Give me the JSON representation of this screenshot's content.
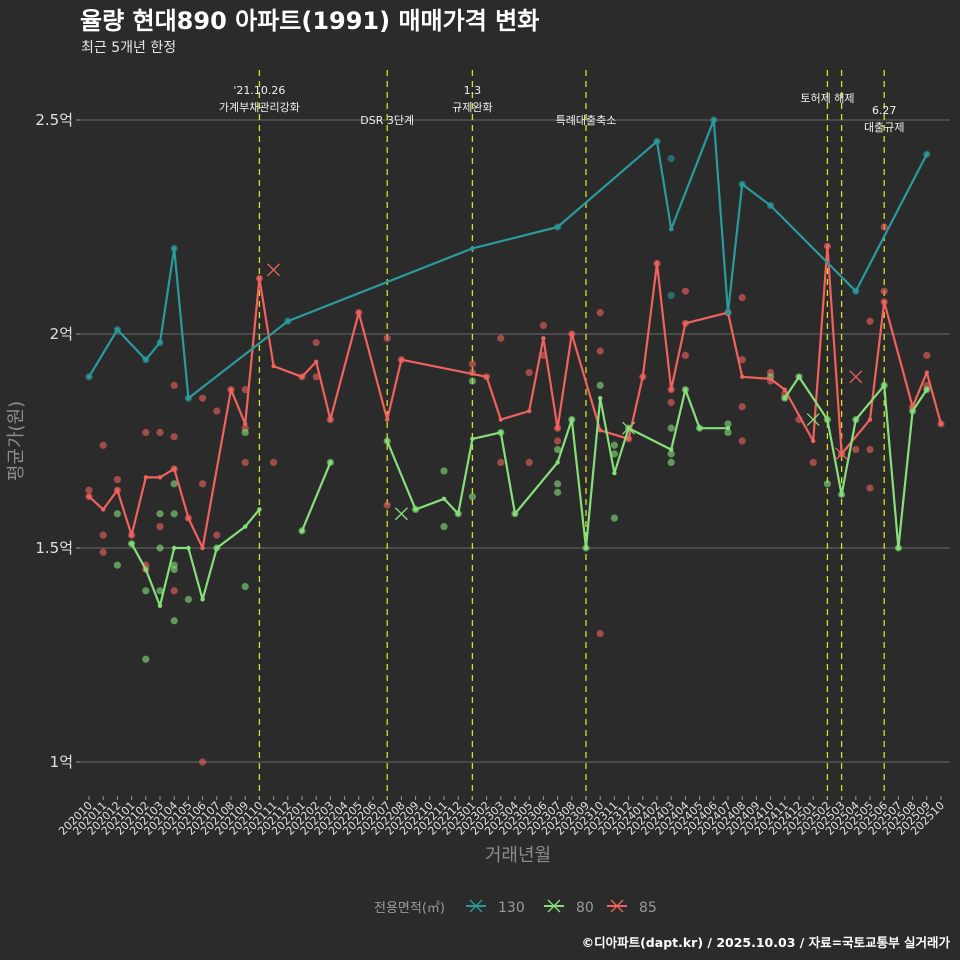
{
  "title": "율량 현대890 아파트(1991) 매매가격 변화",
  "subtitle": "최근 5개년 한정",
  "caption": "©디아파트(dapt.kr) / 2025.10.03 / 자료=국토교통부 실거래가",
  "chart_data": {
    "type": "line",
    "title": "율량 현대890 아파트(1991) 매매가격 변화",
    "subtitle": "최근 5개년 한정",
    "xlabel": "거래년월",
    "ylabel": "평균가(원)",
    "ylim": [
      0.93,
      2.63
    ],
    "yticks": [
      1,
      1.5,
      2,
      2.5
    ],
    "ytick_labels": [
      "1억",
      "1.5억",
      "2억",
      "2.5억"
    ],
    "grid": true,
    "legend_title": "전용면적(㎡)",
    "legend_position": "bottom",
    "x": [
      "202010",
      "202011",
      "202012",
      "202101",
      "202102",
      "202103",
      "202104",
      "202105",
      "202106",
      "202107",
      "202108",
      "202109",
      "202110",
      "202111",
      "202112",
      "202201",
      "202202",
      "202203",
      "202204",
      "202205",
      "202206",
      "202207",
      "202208",
      "202209",
      "202210",
      "202211",
      "202212",
      "202301",
      "202302",
      "202303",
      "202304",
      "202305",
      "202306",
      "202307",
      "202308",
      "202309",
      "202310",
      "202311",
      "202312",
      "202401",
      "202402",
      "202403",
      "202404",
      "202405",
      "202406",
      "202407",
      "202408",
      "202409",
      "202410",
      "202411",
      "202412",
      "202501",
      "202502",
      "202503",
      "202504",
      "202505",
      "202506",
      "202507",
      "202508",
      "202509",
      "202510"
    ],
    "annotations": [
      {
        "x": "202110",
        "line1": "'21.10.26",
        "line2": "가계부채관리강화"
      },
      {
        "x": "202207",
        "line1": "",
        "line2": "DSR 3단계"
      },
      {
        "x": "202301",
        "line1": "1.3",
        "line2": "규제완화"
      },
      {
        "x": "202309",
        "line1": "",
        "line2": "특례대출축소"
      },
      {
        "x": "202502",
        "line1": "",
        "line2": "토허제 해제"
      },
      {
        "x": "202503",
        "line1": "",
        "line2": ""
      },
      {
        "x": "202506",
        "line1": "6.27",
        "line2": "대출규제"
      }
    ],
    "series": [
      {
        "name": "130",
        "color": "#2a9a9c",
        "line": [
          [
            "202010",
            1.9
          ],
          [
            "202012",
            2.01
          ],
          [
            "202102",
            1.94
          ],
          [
            "202103",
            1.98
          ],
          [
            "202104",
            2.2
          ],
          [
            "202105",
            1.85
          ],
          [
            "202112",
            2.03
          ],
          [
            "202301",
            2.2
          ],
          [
            "202307",
            2.25
          ],
          [
            "202402",
            2.45
          ],
          [
            "202403",
            2.245
          ],
          [
            "202406",
            2.5
          ],
          [
            "202407",
            2.05
          ],
          [
            "202408",
            2.35
          ],
          [
            "202410",
            2.3
          ],
          [
            "202504",
            2.1
          ],
          [
            "202509",
            2.42
          ]
        ],
        "points": [
          [
            "202010",
            1.9
          ],
          [
            "202012",
            2.01
          ],
          [
            "202102",
            1.94
          ],
          [
            "202103",
            1.98
          ],
          [
            "202104",
            2.2
          ],
          [
            "202105",
            1.85
          ],
          [
            "202112",
            2.03
          ],
          [
            "202307",
            2.25
          ],
          [
            "202402",
            2.45
          ],
          [
            "202403",
            2.41
          ],
          [
            "202403",
            2.09
          ],
          [
            "202406",
            2.5
          ],
          [
            "202407",
            2.05
          ],
          [
            "202408",
            2.35
          ],
          [
            "202410",
            2.3
          ],
          [
            "202504",
            2.1
          ],
          [
            "202509",
            2.42
          ]
        ],
        "cancelled": []
      },
      {
        "name": "80",
        "color": "#86e07a",
        "segments": [
          [
            [
              "202101",
              1.51
            ],
            [
              "202102",
              1.45
            ],
            [
              "202103",
              1.365
            ],
            [
              "202104",
              1.5
            ],
            [
              "202105",
              1.5
            ],
            [
              "202106",
              1.38
            ],
            [
              "202107",
              1.5
            ],
            [
              "202109",
              1.55
            ],
            [
              "202110",
              1.59
            ]
          ],
          [
            [
              "202201",
              1.54
            ],
            [
              "202203",
              1.7
            ]
          ],
          [
            [
              "202207",
              1.75
            ],
            [
              "202209",
              1.59
            ],
            [
              "202211",
              1.615
            ],
            [
              "202212",
              1.58
            ],
            [
              "202301",
              1.755
            ],
            [
              "202303",
              1.77
            ],
            [
              "202304",
              1.58
            ],
            [
              "202307",
              1.7
            ],
            [
              "202308",
              1.8
            ],
            [
              "202309",
              1.5
            ],
            [
              "202310",
              1.85
            ],
            [
              "202311",
              1.675
            ],
            [
              "202312",
              1.78
            ],
            [
              "202403",
              1.73
            ],
            [
              "202404",
              1.87
            ],
            [
              "202405",
              1.78
            ],
            [
              "202407",
              1.78
            ]
          ],
          [
            [
              "202411",
              1.85
            ],
            [
              "202412",
              1.9
            ],
            [
              "202502",
              1.8
            ],
            [
              "202503",
              1.625
            ],
            [
              "202504",
              1.8
            ],
            [
              "202506",
              1.88
            ],
            [
              "202507",
              1.5
            ],
            [
              "202508",
              1.82
            ],
            [
              "202509",
              1.87
            ]
          ]
        ],
        "points": [
          [
            "202012",
            1.46
          ],
          [
            "202012",
            1.58
          ],
          [
            "202101",
            1.51
          ],
          [
            "202102",
            1.4
          ],
          [
            "202102",
            1.24
          ],
          [
            "202103",
            1.5
          ],
          [
            "202103",
            1.58
          ],
          [
            "202103",
            1.4
          ],
          [
            "202104",
            1.45
          ],
          [
            "202104",
            1.46
          ],
          [
            "202104",
            1.58
          ],
          [
            "202104",
            1.33
          ],
          [
            "202104",
            1.65
          ],
          [
            "202105",
            1.38
          ],
          [
            "202107",
            1.5
          ],
          [
            "202109",
            1.77
          ],
          [
            "202109",
            1.41
          ],
          [
            "202201",
            1.54
          ],
          [
            "202203",
            1.7
          ],
          [
            "202207",
            1.75
          ],
          [
            "202209",
            1.59
          ],
          [
            "202211",
            1.55
          ],
          [
            "202211",
            1.68
          ],
          [
            "202212",
            1.58
          ],
          [
            "202301",
            1.62
          ],
          [
            "202301",
            1.89
          ],
          [
            "202303",
            1.77
          ],
          [
            "202304",
            1.58
          ],
          [
            "202307",
            1.73
          ],
          [
            "202307",
            1.65
          ],
          [
            "202307",
            1.63
          ],
          [
            "202308",
            1.8
          ],
          [
            "202309",
            1.5
          ],
          [
            "202310",
            1.88
          ],
          [
            "202311",
            1.74
          ],
          [
            "202311",
            1.72
          ],
          [
            "202311",
            1.57
          ],
          [
            "202312",
            1.78
          ],
          [
            "202403",
            1.78
          ],
          [
            "202403",
            1.72
          ],
          [
            "202403",
            1.7
          ],
          [
            "202404",
            1.87
          ],
          [
            "202405",
            1.78
          ],
          [
            "202407",
            1.79
          ],
          [
            "202407",
            1.77
          ],
          [
            "202410",
            1.9
          ],
          [
            "202411",
            1.85
          ],
          [
            "202412",
            1.9
          ],
          [
            "202502",
            1.8
          ],
          [
            "202502",
            1.65
          ],
          [
            "202503",
            1.625
          ],
          [
            "202504",
            1.8
          ],
          [
            "202506",
            1.88
          ],
          [
            "202507",
            1.5
          ],
          [
            "202508",
            1.82
          ],
          [
            "202509",
            1.87
          ]
        ],
        "cancelled": [
          [
            "202208",
            1.58
          ],
          [
            "202312",
            1.78
          ],
          [
            "202501",
            1.8
          ]
        ]
      },
      {
        "name": "85",
        "color": "#f0625d",
        "segments": [
          [
            [
              "202010",
              1.62
            ],
            [
              "202011",
              1.59
            ],
            [
              "202012",
              1.635
            ],
            [
              "202101",
              1.53
            ],
            [
              "202102",
              1.665
            ],
            [
              "202103",
              1.665
            ],
            [
              "202104",
              1.685
            ],
            [
              "202105",
              1.57
            ],
            [
              "202106",
              1.5
            ],
            [
              "202108",
              1.87
            ],
            [
              "202109",
              1.79
            ],
            [
              "202110",
              2.13
            ],
            [
              "202111",
              1.925
            ],
            [
              "202201",
              1.9
            ],
            [
              "202202",
              1.935
            ],
            [
              "202203",
              1.8
            ],
            [
              "202205",
              2.05
            ],
            [
              "202207",
              1.8
            ],
            [
              "202208",
              1.94
            ],
            [
              "202302",
              1.9
            ],
            [
              "202303",
              1.8
            ],
            [
              "202305",
              1.82
            ],
            [
              "202306",
              1.99
            ],
            [
              "202307",
              1.78
            ],
            [
              "202308",
              2.0
            ],
            [
              "202310",
              1.775
            ],
            [
              "202312",
              1.755
            ],
            [
              "202401",
              1.9
            ],
            [
              "202402",
              2.165
            ],
            [
              "202403",
              1.87
            ],
            [
              "202404",
              2.025
            ],
            [
              "202407",
              2.05
            ],
            [
              "202408",
              1.9
            ],
            [
              "202410",
              1.895
            ],
            [
              "202411",
              1.87
            ],
            [
              "202501",
              1.75
            ],
            [
              "202502",
              2.205
            ],
            [
              "202503",
              1.72
            ],
            [
              "202505",
              1.8
            ],
            [
              "202506",
              2.075
            ],
            [
              "202508",
              1.83
            ],
            [
              "202509",
              1.91
            ],
            [
              "202510",
              1.79
            ]
          ]
        ],
        "points": [
          [
            "202010",
            1.635
          ],
          [
            "202010",
            1.62
          ],
          [
            "202011",
            1.74
          ],
          [
            "202011",
            1.53
          ],
          [
            "202011",
            1.49
          ],
          [
            "202012",
            1.66
          ],
          [
            "202012",
            1.635
          ],
          [
            "202101",
            1.53
          ],
          [
            "202102",
            1.77
          ],
          [
            "202102",
            1.46
          ],
          [
            "202102",
            1.45
          ],
          [
            "202103",
            1.77
          ],
          [
            "202103",
            1.55
          ],
          [
            "202104",
            1.76
          ],
          [
            "202104",
            1.88
          ],
          [
            "202104",
            1.685
          ],
          [
            "202104",
            1.4
          ],
          [
            "202105",
            1.57
          ],
          [
            "202106",
            1.85
          ],
          [
            "202106",
            1.65
          ],
          [
            "202106",
            1.0
          ],
          [
            "202107",
            1.82
          ],
          [
            "202107",
            1.53
          ],
          [
            "202108",
            1.87
          ],
          [
            "202109",
            1.87
          ],
          [
            "202109",
            1.78
          ],
          [
            "202109",
            1.7
          ],
          [
            "202110",
            2.13
          ],
          [
            "202111",
            1.7
          ],
          [
            "202201",
            1.9
          ],
          [
            "202202",
            1.98
          ],
          [
            "202202",
            1.9
          ],
          [
            "202203",
            1.8
          ],
          [
            "202205",
            2.05
          ],
          [
            "202207",
            1.99
          ],
          [
            "202207",
            1.6
          ],
          [
            "202208",
            1.94
          ],
          [
            "202301",
            1.93
          ],
          [
            "202301",
            1.91
          ],
          [
            "202302",
            1.9
          ],
          [
            "202303",
            1.99
          ],
          [
            "202303",
            1.7
          ],
          [
            "202305",
            1.91
          ],
          [
            "202305",
            1.7
          ],
          [
            "202306",
            2.02
          ],
          [
            "202306",
            1.95
          ],
          [
            "202307",
            1.78
          ],
          [
            "202307",
            1.75
          ],
          [
            "202308",
            2.0
          ],
          [
            "202310",
            2.05
          ],
          [
            "202310",
            1.96
          ],
          [
            "202310",
            1.3
          ],
          [
            "202312",
            1.755
          ],
          [
            "202401",
            1.9
          ],
          [
            "202402",
            2.165
          ],
          [
            "202403",
            1.87
          ],
          [
            "202403",
            1.84
          ],
          [
            "202404",
            2.1
          ],
          [
            "202404",
            2.025
          ],
          [
            "202404",
            1.95
          ],
          [
            "202407",
            2.05
          ],
          [
            "202408",
            2.085
          ],
          [
            "202408",
            1.94
          ],
          [
            "202408",
            1.83
          ],
          [
            "202408",
            1.75
          ],
          [
            "202410",
            1.91
          ],
          [
            "202410",
            1.89
          ],
          [
            "202411",
            1.86
          ],
          [
            "202412",
            1.8
          ],
          [
            "202501",
            1.7
          ],
          [
            "202502",
            2.205
          ],
          [
            "202503",
            1.72
          ],
          [
            "202504",
            1.73
          ],
          [
            "202505",
            2.03
          ],
          [
            "202505",
            1.73
          ],
          [
            "202505",
            1.64
          ],
          [
            "202506",
            2.25
          ],
          [
            "202506",
            2.1
          ],
          [
            "202506",
            2.075
          ],
          [
            "202508",
            1.83
          ],
          [
            "202509",
            1.95
          ],
          [
            "202509",
            1.88
          ],
          [
            "202510",
            1.79
          ]
        ],
        "cancelled": [
          [
            "202111",
            2.15
          ],
          [
            "202503",
            1.72
          ],
          [
            "202504",
            1.9
          ]
        ]
      }
    ]
  }
}
